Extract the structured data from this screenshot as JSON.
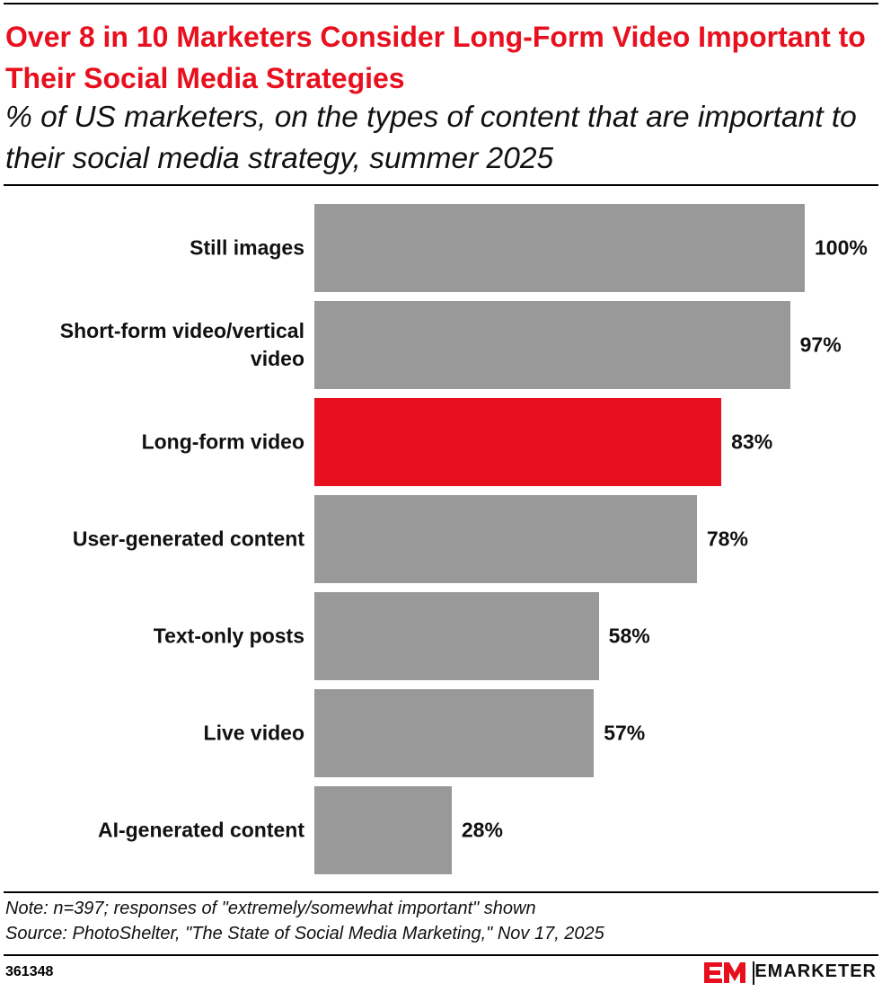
{
  "chart_data": {
    "type": "bar",
    "orientation": "horizontal",
    "title": "Over 8 in 10 Marketers Consider Long-Form Video Important to Their Social Media Strategies",
    "subtitle": "% of US marketers, on the types of content that are important to their social media strategy, summer 2025",
    "categories": [
      "Still images",
      "Short-form video/vertical video",
      "Long-form video",
      "User-generated content",
      "Text-only posts",
      "Live video",
      "AI-generated content"
    ],
    "values": [
      100,
      97,
      83,
      78,
      58,
      57,
      28
    ],
    "value_labels": [
      "100%",
      "97%",
      "83%",
      "78%",
      "58%",
      "57%",
      "28%"
    ],
    "colors": [
      "#999999",
      "#999999",
      "#e8101e",
      "#999999",
      "#999999",
      "#999999",
      "#999999"
    ],
    "note": "Note: n=397; responses of \"extremely/somewhat important\" shown",
    "source": "Source: PhotoShelter, \"The State of Social Media Marketing,\" Nov 17, 2025",
    "chart_id": "361348",
    "brand": "EMARKETER"
  }
}
